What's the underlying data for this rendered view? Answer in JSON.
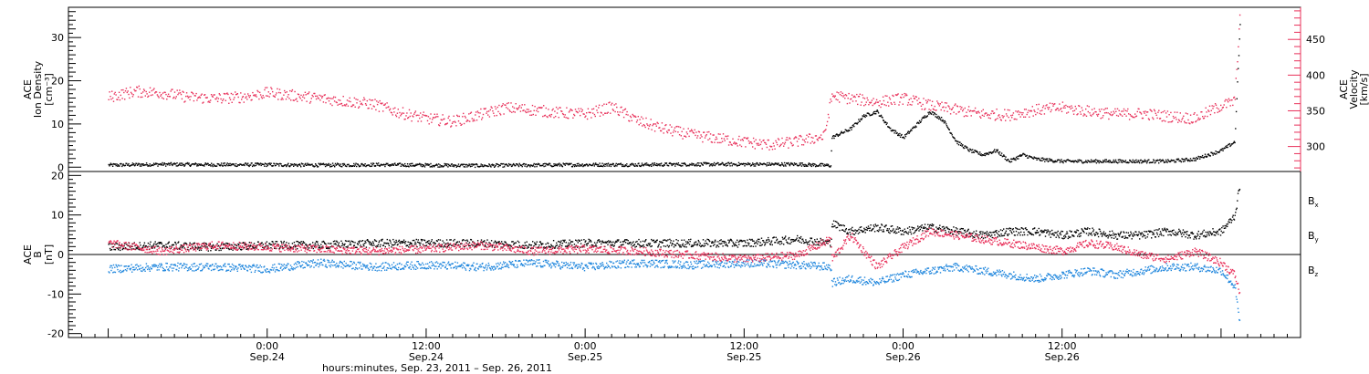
{
  "chart_data": [
    {
      "type": "scatter",
      "panel": "top",
      "ylabel": [
        "ACE",
        "Ion Density",
        "[cm⁻³]"
      ],
      "ylim": [
        -1,
        37
      ],
      "yticks": [
        0,
        10,
        20,
        30
      ],
      "ylabel_right": [
        "ACE",
        "Velocity",
        "[km/s]"
      ],
      "ylim_right": [
        265,
        495
      ],
      "yticks_right": [
        300,
        350,
        400,
        450
      ],
      "colors": {
        "density": "#000000",
        "velocity": "#e8305a"
      },
      "series": [
        {
          "key": "density",
          "axis": "left",
          "points": [
            [
              0,
              0.6
            ],
            [
              4,
              0.8
            ],
            [
              8,
              0.7
            ],
            [
              12,
              0.7
            ],
            [
              16,
              0.6
            ],
            [
              20,
              0.7
            ],
            [
              24,
              0.6
            ],
            [
              28,
              0.5
            ],
            [
              32,
              0.6
            ],
            [
              36,
              0.7
            ],
            [
              40,
              0.7
            ],
            [
              44,
              0.8
            ],
            [
              48,
              0.8
            ],
            [
              52,
              0.8
            ],
            [
              54.5,
              0.5
            ],
            [
              54.6,
              7
            ],
            [
              56,
              9
            ],
            [
              57,
              12
            ],
            [
              58,
              13
            ],
            [
              59,
              9
            ],
            [
              60,
              7
            ],
            [
              61,
              10
            ],
            [
              62,
              13
            ],
            [
              63,
              11
            ],
            [
              64,
              6
            ],
            [
              65,
              4
            ],
            [
              66,
              3
            ],
            [
              67,
              4
            ],
            [
              68,
              1.5
            ],
            [
              69,
              3
            ],
            [
              70,
              2
            ],
            [
              72,
              1.5
            ],
            [
              76,
              1.5
            ],
            [
              80,
              1.5
            ],
            [
              82,
              2
            ],
            [
              84,
              4
            ],
            [
              85,
              6
            ],
            [
              85.4,
              33
            ]
          ]
        },
        {
          "key": "velocity",
          "axis": "right",
          "points": [
            [
              0,
              370
            ],
            [
              2,
              378
            ],
            [
              4,
              376
            ],
            [
              6,
              370
            ],
            [
              8,
              368
            ],
            [
              10,
              370
            ],
            [
              12,
              376
            ],
            [
              14,
              372
            ],
            [
              16,
              368
            ],
            [
              18,
              364
            ],
            [
              20,
              360
            ],
            [
              22,
              348
            ],
            [
              24,
              340
            ],
            [
              26,
              336
            ],
            [
              28,
              345
            ],
            [
              30,
              355
            ],
            [
              32,
              352
            ],
            [
              34,
              348
            ],
            [
              36,
              346
            ],
            [
              38,
              356
            ],
            [
              40,
              336
            ],
            [
              42,
              325
            ],
            [
              44,
              317
            ],
            [
              46,
              312
            ],
            [
              48,
              307
            ],
            [
              50,
              303
            ],
            [
              52,
              308
            ],
            [
              54,
              315
            ],
            [
              54.6,
              372
            ],
            [
              56,
              368
            ],
            [
              58,
              363
            ],
            [
              60,
              368
            ],
            [
              62,
              358
            ],
            [
              64,
              352
            ],
            [
              66,
              346
            ],
            [
              68,
              345
            ],
            [
              70,
              352
            ],
            [
              72,
              355
            ],
            [
              74,
              350
            ],
            [
              76,
              346
            ],
            [
              78,
              347
            ],
            [
              80,
              343
            ],
            [
              82,
              340
            ],
            [
              84,
              358
            ],
            [
              85,
              364
            ],
            [
              85.4,
              490
            ]
          ]
        }
      ]
    },
    {
      "type": "scatter",
      "panel": "bottom",
      "ylabel": [
        "ACE",
        "B",
        "[nT]"
      ],
      "ylim": [
        -21,
        21
      ],
      "yticks": [
        -20,
        -10,
        0,
        10,
        20
      ],
      "legend": [
        "Bx",
        "By",
        "Bz"
      ],
      "colors": {
        "Bx": "#000000",
        "By": "#1f86dd",
        "Bz": "#e8305a"
      },
      "series": [
        {
          "key": "Bx",
          "points": [
            [
              0,
              2
            ],
            [
              4,
              2.5
            ],
            [
              8,
              2
            ],
            [
              12,
              2.5
            ],
            [
              16,
              2.5
            ],
            [
              20,
              3
            ],
            [
              24,
              3
            ],
            [
              28,
              3
            ],
            [
              32,
              2.5
            ],
            [
              36,
              3
            ],
            [
              40,
              3
            ],
            [
              44,
              3
            ],
            [
              48,
              3
            ],
            [
              52,
              4
            ],
            [
              54.5,
              3
            ],
            [
              54.6,
              8
            ],
            [
              56,
              6
            ],
            [
              58,
              7
            ],
            [
              60,
              6
            ],
            [
              62,
              7
            ],
            [
              64,
              6
            ],
            [
              66,
              5
            ],
            [
              68,
              6
            ],
            [
              70,
              6
            ],
            [
              72,
              5
            ],
            [
              74,
              6
            ],
            [
              76,
              5
            ],
            [
              78,
              5
            ],
            [
              80,
              6
            ],
            [
              82,
              5
            ],
            [
              84,
              6
            ],
            [
              85,
              10
            ],
            [
              85.4,
              18
            ]
          ]
        },
        {
          "key": "By",
          "points": [
            [
              0,
              -3.5
            ],
            [
              4,
              -3
            ],
            [
              8,
              -3
            ],
            [
              12,
              -3.5
            ],
            [
              16,
              -2
            ],
            [
              20,
              -3
            ],
            [
              24,
              -2.5
            ],
            [
              28,
              -3
            ],
            [
              32,
              -2
            ],
            [
              36,
              -3
            ],
            [
              40,
              -2
            ],
            [
              44,
              -2.5
            ],
            [
              48,
              -2
            ],
            [
              52,
              -2.5
            ],
            [
              54.5,
              -3
            ],
            [
              54.6,
              -7
            ],
            [
              56,
              -6
            ],
            [
              58,
              -7
            ],
            [
              60,
              -5
            ],
            [
              62,
              -4
            ],
            [
              64,
              -3
            ],
            [
              66,
              -4
            ],
            [
              68,
              -5
            ],
            [
              70,
              -6
            ],
            [
              72,
              -5
            ],
            [
              74,
              -4
            ],
            [
              76,
              -5
            ],
            [
              78,
              -4
            ],
            [
              80,
              -3
            ],
            [
              82,
              -3
            ],
            [
              84,
              -4
            ],
            [
              85,
              -8
            ],
            [
              85.4,
              -18
            ]
          ]
        },
        {
          "key": "Bz",
          "points": [
            [
              0,
              3
            ],
            [
              4,
              1
            ],
            [
              8,
              2.5
            ],
            [
              12,
              2
            ],
            [
              16,
              1.5
            ],
            [
              20,
              1
            ],
            [
              24,
              1.5
            ],
            [
              28,
              2.5
            ],
            [
              32,
              1
            ],
            [
              36,
              1.5
            ],
            [
              40,
              1
            ],
            [
              44,
              0
            ],
            [
              48,
              -1
            ],
            [
              52,
              0
            ],
            [
              54.5,
              4
            ],
            [
              54.6,
              -1
            ],
            [
              56,
              5
            ],
            [
              58,
              -3
            ],
            [
              60,
              2
            ],
            [
              62,
              6
            ],
            [
              64,
              5
            ],
            [
              66,
              4
            ],
            [
              68,
              3
            ],
            [
              70,
              2
            ],
            [
              72,
              1
            ],
            [
              74,
              3
            ],
            [
              76,
              2
            ],
            [
              78,
              0
            ],
            [
              80,
              -1
            ],
            [
              82,
              1
            ],
            [
              84,
              -2
            ],
            [
              85,
              -5
            ],
            [
              85.4,
              -10
            ]
          ]
        }
      ]
    }
  ],
  "xaxis": {
    "x_range_hours": [
      -3,
      90
    ],
    "ticks": [
      {
        "hour": 12,
        "time": "0:00",
        "date": "Sep.24"
      },
      {
        "hour": 24,
        "time": "12:00",
        "date": "Sep.24"
      },
      {
        "hour": 36,
        "time": "0:00",
        "date": "Sep.25"
      },
      {
        "hour": 48,
        "time": "12:00",
        "date": "Sep.25"
      },
      {
        "hour": 60,
        "time": "0:00",
        "date": "Sep.26"
      },
      {
        "hour": 72,
        "time": "12:00",
        "date": "Sep.26"
      }
    ],
    "label": "hours:minutes, Sep. 23, 2011 – Sep. 26, 2011"
  },
  "legend_labels": {
    "bx": {
      "base": "B",
      "sub": "x"
    },
    "by": {
      "base": "B",
      "sub": "y"
    },
    "bz": {
      "base": "B",
      "sub": "z"
    }
  }
}
